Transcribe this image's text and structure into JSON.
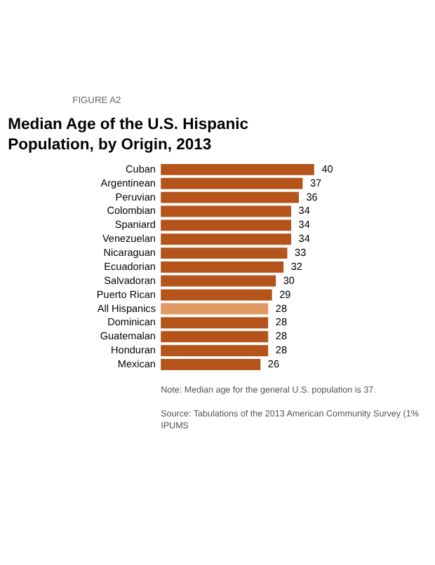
{
  "chart_data": {
    "type": "bar",
    "orientation": "horizontal",
    "title": "Median Age of the U.S. Hispanic Population, by Origin, 2013",
    "categories": [
      "Cuban",
      "Argentinean",
      "Peruvian",
      "Colombian",
      "Spaniard",
      "Venezuelan",
      "Nicaraguan",
      "Ecuadorian",
      "Salvadoran",
      "Puerto Rican",
      "All Hispanics",
      "Dominican",
      "Guatemalan",
      "Honduran",
      "Mexican"
    ],
    "values": [
      40,
      37,
      36,
      34,
      34,
      34,
      33,
      32,
      30,
      29,
      28,
      28,
      28,
      28,
      26
    ],
    "colors": [
      "#b4541a",
      "#b4541a",
      "#b4541a",
      "#b4541a",
      "#b4541a",
      "#b4541a",
      "#b4541a",
      "#b4541a",
      "#b4541a",
      "#b4541a",
      "#e29a64",
      "#b4541a",
      "#b4541a",
      "#b4541a",
      "#b4541a"
    ],
    "data_labels": true,
    "annotations": [
      "FIGURE A2",
      "Note: Median age for the general U.S. population is 37.",
      "Source: Tabulations of the 2013 American Community Survey (1% IPUMS"
    ]
  }
}
